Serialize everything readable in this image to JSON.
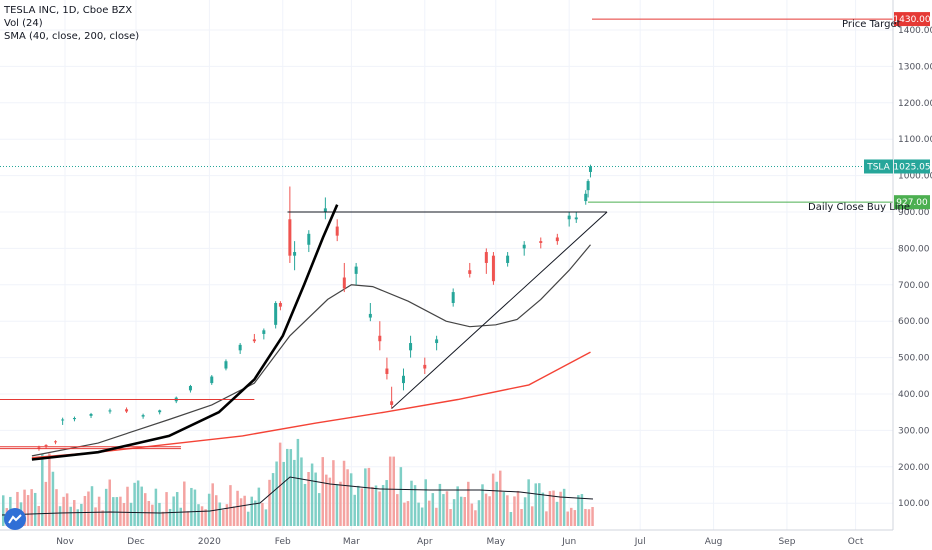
{
  "legend": {
    "symbol_line": "TESLA INC, 1D, Cboe BZX",
    "volume_line": "Vol (24)",
    "sma_line": "SMA (40, close, 200, close)"
  },
  "annotations": {
    "price_target_label": "Price Target",
    "buy_line_label": "Daily Close Buy Line"
  },
  "badges": {
    "price_target_value": "1430.00",
    "buy_line_value": "927.00",
    "ticker": "TSLA",
    "last_price": "1025.05"
  },
  "colors": {
    "up": "#26a69a",
    "down": "#ef5350",
    "vol_up": "#7fcfc6",
    "vol_down": "#f4a3a1",
    "sma40": "#444444",
    "sma200": "#f44336",
    "target": "#e53935",
    "buyline": "#4caf50",
    "last_price_badge": "#26a69a",
    "logo": "#2f6fd6"
  },
  "chart_data": {
    "type": "candlestick",
    "title": "TESLA INC, 1D, Cboe BZX",
    "y_ticks": [
      "1400.00",
      "1300.00",
      "1200.00",
      "1100.00",
      "1000.00",
      "900.00",
      "800.00",
      "700.00",
      "600.00",
      "500.00",
      "400.00",
      "300.00",
      "200.00",
      "100.00"
    ],
    "x_ticks": [
      "Nov",
      "Dec",
      "2020",
      "Feb",
      "Mar",
      "Apr",
      "May",
      "Jun",
      "Jul",
      "Aug",
      "Sep",
      "Oct"
    ],
    "levels": {
      "price_target": 1430,
      "buy_line": 927,
      "last_price": 1025.05,
      "resistance": 900,
      "old_support_1": 385,
      "old_support_2": 255
    },
    "sma40": [
      [
        "Oct 18",
        230
      ],
      [
        "Nov 15",
        265
      ],
      [
        "Dec 1",
        300
      ],
      [
        "Dec 15",
        330
      ],
      [
        "Jan 2",
        370
      ],
      [
        "Jan 20",
        430
      ],
      [
        "Feb 4",
        560
      ],
      [
        "Feb 20",
        660
      ],
      [
        "Mar 1",
        700
      ],
      [
        "Mar 10",
        695
      ],
      [
        "Mar 25",
        655
      ],
      [
        "Apr 10",
        600
      ],
      [
        "Apr 20",
        585
      ],
      [
        "May 1",
        590
      ],
      [
        "May 10",
        605
      ],
      [
        "May 20",
        660
      ],
      [
        "Jun 1",
        740
      ],
      [
        "Jun 10",
        810
      ]
    ],
    "sma200": [
      [
        "Oct 18",
        225
      ],
      [
        "Nov 15",
        240
      ],
      [
        "Dec 15",
        262
      ],
      [
        "Jan 15",
        285
      ],
      [
        "Feb 15",
        320
      ],
      [
        "Mar 15",
        350
      ],
      [
        "Apr 15",
        385
      ],
      [
        "May 15",
        425
      ],
      [
        "Jun 10",
        515
      ]
    ],
    "candles": [
      [
        "Oct 21",
        253,
        258,
        244,
        252
      ],
      [
        "Oct 24",
        260,
        262,
        249,
        258
      ],
      [
        "Oct 28",
        270,
        273,
        262,
        268
      ],
      [
        "Oct 31",
        328,
        335,
        315,
        330
      ],
      [
        "Nov 5",
        331,
        338,
        325,
        334
      ],
      [
        "Nov 12",
        340,
        348,
        334,
        345
      ],
      [
        "Nov 20",
        352,
        360,
        346,
        355
      ],
      [
        "Nov 27",
        358,
        363,
        348,
        352
      ],
      [
        "Dec 4",
        338,
        346,
        332,
        342
      ],
      [
        "Dec 11",
        350,
        357,
        344,
        355
      ],
      [
        "Dec 18",
        380,
        393,
        375,
        390
      ],
      [
        "Dec 24",
        410,
        425,
        404,
        422
      ],
      [
        "Jan 2",
        430,
        452,
        425,
        448
      ],
      [
        "Jan 8",
        470,
        495,
        465,
        490
      ],
      [
        "Jan 14",
        520,
        540,
        510,
        535
      ],
      [
        "Jan 20",
        550,
        565,
        540,
        545
      ],
      [
        "Jan 24",
        565,
        580,
        550,
        575
      ],
      [
        "Jan 29",
        590,
        655,
        580,
        650
      ],
      [
        "Jan 31",
        650,
        655,
        630,
        640
      ],
      [
        "Feb 4",
        880,
        970,
        760,
        780
      ],
      [
        "Feb 6",
        780,
        820,
        740,
        790
      ],
      [
        "Feb 12",
        810,
        850,
        790,
        840
      ],
      [
        "Feb 19",
        900,
        940,
        880,
        910
      ],
      [
        "Feb 24",
        860,
        880,
        820,
        835
      ],
      [
        "Feb 27",
        720,
        760,
        680,
        690
      ],
      [
        "Mar 3",
        730,
        760,
        700,
        750
      ],
      [
        "Mar 9",
        610,
        650,
        600,
        620
      ],
      [
        "Mar 13",
        560,
        600,
        520,
        545
      ],
      [
        "Mar 16",
        470,
        500,
        440,
        455
      ],
      [
        "Mar 18",
        380,
        420,
        360,
        370
      ],
      [
        "Mar 23",
        430,
        470,
        410,
        450
      ],
      [
        "Mar 26",
        520,
        560,
        500,
        540
      ],
      [
        "Apr 1",
        480,
        500,
        455,
        470
      ],
      [
        "Apr 6",
        540,
        560,
        520,
        550
      ],
      [
        "Apr 13",
        650,
        690,
        640,
        680
      ],
      [
        "Apr 20",
        740,
        760,
        720,
        730
      ],
      [
        "Apr 27",
        790,
        800,
        730,
        760
      ],
      [
        "Apr 30",
        780,
        790,
        700,
        710
      ],
      [
        "May 6",
        760,
        790,
        750,
        780
      ],
      [
        "May 13",
        800,
        820,
        780,
        810
      ],
      [
        "May 20",
        820,
        830,
        800,
        815
      ],
      [
        "May 27",
        830,
        840,
        810,
        820
      ],
      [
        "Jun 1",
        880,
        900,
        860,
        890
      ],
      [
        "Jun 4",
        880,
        900,
        870,
        885
      ],
      [
        "Jun 8",
        930,
        960,
        920,
        950
      ],
      [
        "Jun 9",
        960,
        990,
        940,
        985
      ],
      [
        "Jun 10",
        1010,
        1030,
        995,
        1025
      ]
    ]
  }
}
